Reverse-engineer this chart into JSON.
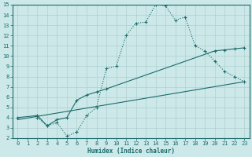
{
  "line1_x": [
    2,
    3,
    4,
    5,
    6,
    7,
    8,
    9,
    10,
    11,
    12,
    13,
    14,
    15,
    16,
    17,
    18,
    19,
    20,
    21,
    22,
    23
  ],
  "line1_y": [
    4.0,
    3.2,
    3.5,
    2.2,
    2.6,
    4.2,
    5.0,
    8.8,
    9.0,
    12.0,
    13.2,
    13.3,
    15.0,
    14.9,
    13.5,
    13.8,
    11.0,
    10.5,
    9.5,
    8.5,
    8.0,
    7.5
  ],
  "line2_x": [
    0,
    2,
    3,
    4,
    5,
    6,
    7,
    8,
    9,
    20,
    21,
    22,
    23
  ],
  "line2_y": [
    4.0,
    4.2,
    3.2,
    3.8,
    4.0,
    5.7,
    6.2,
    6.5,
    6.8,
    10.5,
    10.6,
    10.7,
    10.8
  ],
  "line3_x": [
    0,
    23
  ],
  "line3_y": [
    3.8,
    7.5
  ],
  "bg_color": "#cce8e8",
  "grid_color": "#b0d0d0",
  "line_color": "#1a6b6b",
  "xlabel": "Humidex (Indice chaleur)",
  "xlim": [
    -0.5,
    23.5
  ],
  "ylim": [
    2,
    15
  ],
  "xticks": [
    0,
    1,
    2,
    3,
    4,
    5,
    6,
    7,
    8,
    9,
    10,
    11,
    12,
    13,
    14,
    15,
    16,
    17,
    18,
    19,
    20,
    21,
    22,
    23
  ],
  "yticks": [
    2,
    3,
    4,
    5,
    6,
    7,
    8,
    9,
    10,
    11,
    12,
    13,
    14,
    15
  ]
}
